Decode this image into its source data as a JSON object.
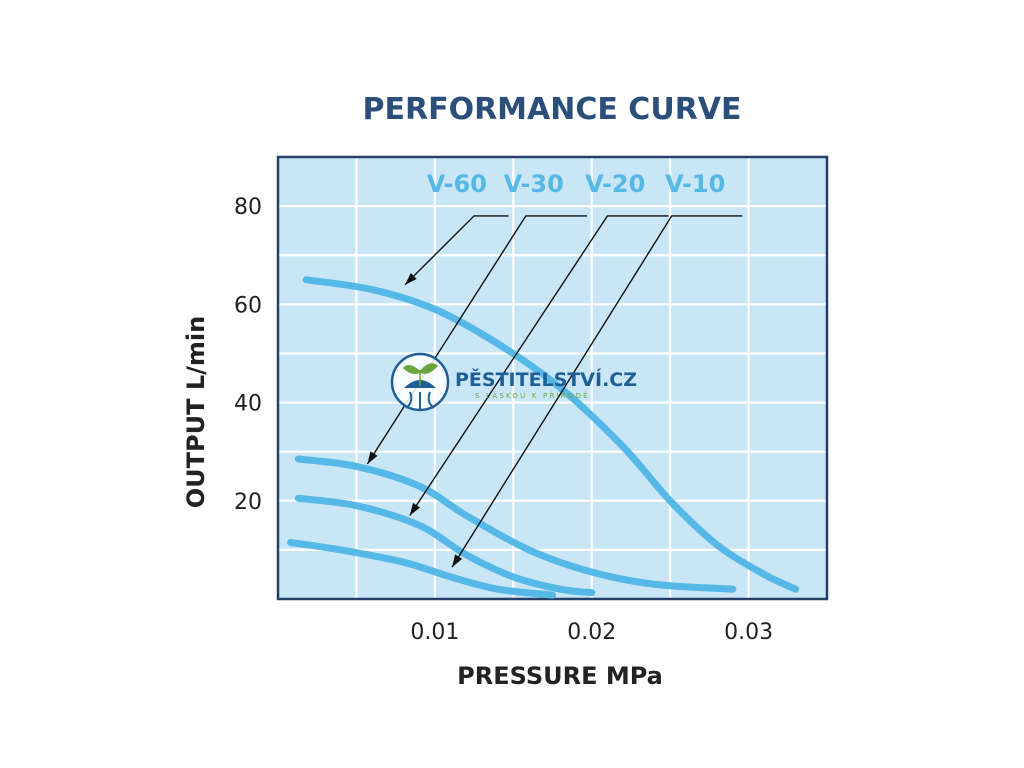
{
  "chart_data": {
    "type": "line",
    "title": "PERFORMANCE CURVE",
    "xlabel": "PRESSURE MPa",
    "ylabel": "OUTPUT L/min",
    "xlim": [
      0,
      0.035
    ],
    "ylim": [
      0,
      90
    ],
    "x_ticks": [
      0.01,
      0.02,
      0.03
    ],
    "x_tick_labels": [
      "0.01",
      "0.02",
      "0.03"
    ],
    "y_ticks": [
      20,
      40,
      60,
      80
    ],
    "y_tick_labels": [
      "20",
      "40",
      "60",
      "80"
    ],
    "grid": true,
    "background_color": "#c8e6f5",
    "line_color": "#55b8e6",
    "series": [
      {
        "name": "V-60",
        "x": [
          0.0018,
          0.006,
          0.01,
          0.014,
          0.018,
          0.022,
          0.025,
          0.028,
          0.031,
          0.033
        ],
        "y": [
          65,
          63,
          59,
          52,
          43,
          31,
          20,
          11,
          5,
          2
        ]
      },
      {
        "name": "V-30",
        "x": [
          0.0013,
          0.005,
          0.009,
          0.012,
          0.016,
          0.02,
          0.024,
          0.029
        ],
        "y": [
          28.5,
          27,
          23,
          17,
          10,
          5.5,
          3,
          2
        ]
      },
      {
        "name": "V-20",
        "x": [
          0.0013,
          0.005,
          0.009,
          0.012,
          0.015,
          0.018,
          0.02
        ],
        "y": [
          20.5,
          19,
          15,
          9,
          4.5,
          2,
          1.3
        ]
      },
      {
        "name": "V-10",
        "x": [
          0.0008,
          0.004,
          0.008,
          0.011,
          0.014,
          0.0175
        ],
        "y": [
          11.5,
          10,
          7.5,
          4.5,
          2,
          0.8
        ]
      }
    ],
    "annotations": [
      {
        "series": "V-60",
        "from": [
          0.0147,
          78
        ],
        "bend": [
          0.0125,
          78
        ],
        "to": [
          0.0081,
          64
        ]
      },
      {
        "series": "V-30",
        "from": [
          0.0197,
          78
        ],
        "bend": [
          0.0158,
          78
        ],
        "to": [
          0.0057,
          27.5
        ]
      },
      {
        "series": "V-20",
        "from": [
          0.0249,
          78
        ],
        "bend": [
          0.021,
          78
        ],
        "to": [
          0.0084,
          17
        ]
      },
      {
        "series": "V-10",
        "from": [
          0.0296,
          78
        ],
        "bend": [
          0.0251,
          78
        ],
        "to": [
          0.0111,
          6.5
        ]
      }
    ]
  },
  "watermark": {
    "name": "PĚSTITELSTVÍ.CZ",
    "tagline": "S LÁSKOU K PŘÍRODĚ",
    "color": "#1f5f96",
    "leaf_color": "#6aa63c"
  }
}
